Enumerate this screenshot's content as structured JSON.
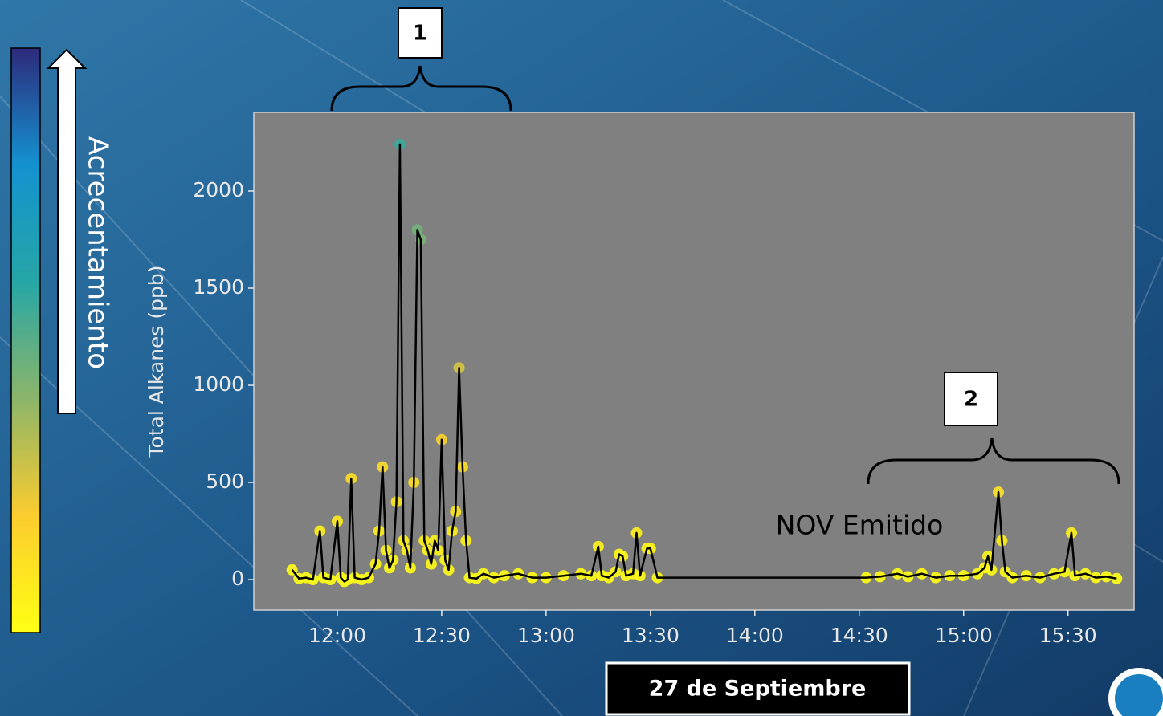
{
  "chart_data": {
    "type": "line",
    "y_label": "Total Alkanes (ppb)",
    "x": [
      "11:47",
      "11:49",
      "11:51",
      "11:53",
      "11:55",
      "11:56",
      "11:58",
      "12:00",
      "12:01",
      "12:02",
      "12:03",
      "12:04",
      "12:05",
      "12:07",
      "12:09",
      "12:11",
      "12:12",
      "12:13",
      "12:14",
      "12:15",
      "12:16",
      "12:17",
      "12:18",
      "12:19",
      "12:20",
      "12:21",
      "12:22",
      "12:23",
      "12:24",
      "12:25",
      "12:26",
      "12:27",
      "12:28",
      "12:29",
      "12:30",
      "12:31",
      "12:32",
      "12:33",
      "12:34",
      "12:35",
      "12:36",
      "12:37",
      "12:38",
      "12:40",
      "12:42",
      "12:45",
      "12:48",
      "12:52",
      "12:56",
      "13:00",
      "13:05",
      "13:10",
      "13:13",
      "13:15",
      "13:16",
      "13:18",
      "13:20",
      "13:21",
      "13:22",
      "13:23",
      "13:25",
      "13:26",
      "13:27",
      "13:29",
      "13:30",
      "13:32",
      "14:32",
      "14:36",
      "14:41",
      "14:44",
      "14:48",
      "14:52",
      "14:56",
      "15:00",
      "15:04",
      "15:06",
      "15:07",
      "15:08",
      "15:10",
      "15:11",
      "15:12",
      "15:14",
      "15:18",
      "15:22",
      "15:26",
      "15:29",
      "15:31",
      "15:32",
      "15:35",
      "15:38",
      "15:41",
      "15:44"
    ],
    "values": [
      50,
      5,
      10,
      0,
      250,
      10,
      0,
      300,
      10,
      -10,
      0,
      520,
      10,
      0,
      10,
      80,
      250,
      580,
      150,
      60,
      100,
      400,
      2240,
      200,
      150,
      60,
      500,
      1800,
      1750,
      200,
      150,
      80,
      200,
      150,
      720,
      100,
      50,
      250,
      350,
      1090,
      580,
      200,
      10,
      5,
      30,
      10,
      20,
      30,
      10,
      10,
      20,
      30,
      20,
      170,
      20,
      10,
      40,
      130,
      120,
      20,
      30,
      240,
      20,
      160,
      160,
      10,
      10,
      15,
      30,
      15,
      30,
      10,
      20,
      20,
      30,
      60,
      120,
      50,
      450,
      200,
      40,
      10,
      20,
      10,
      30,
      40,
      240,
      20,
      30,
      10,
      15,
      5
    ],
    "line_color": "#000000",
    "colormap": [
      "#ffff14",
      "#fbcc2e",
      "#8cb56a",
      "#26a6a6",
      "#1492d0",
      "#2d2a7a"
    ],
    "clim": [
      0,
      4000
    ],
    "xlim": [
      "11:36",
      "15:49"
    ],
    "xticks": [
      "12:00",
      "12:30",
      "13:00",
      "13:30",
      "14:00",
      "14:30",
      "15:00",
      "15:30"
    ],
    "ylim": [
      -157,
      2405
    ],
    "yticks": [
      0,
      500,
      1000,
      1500,
      2000
    ],
    "grid": false,
    "annotations": [
      "1",
      "2",
      "NOV Emitido"
    ],
    "colorbar_label": "Acrecentamiento",
    "date_label": "27 de Septiembre"
  }
}
